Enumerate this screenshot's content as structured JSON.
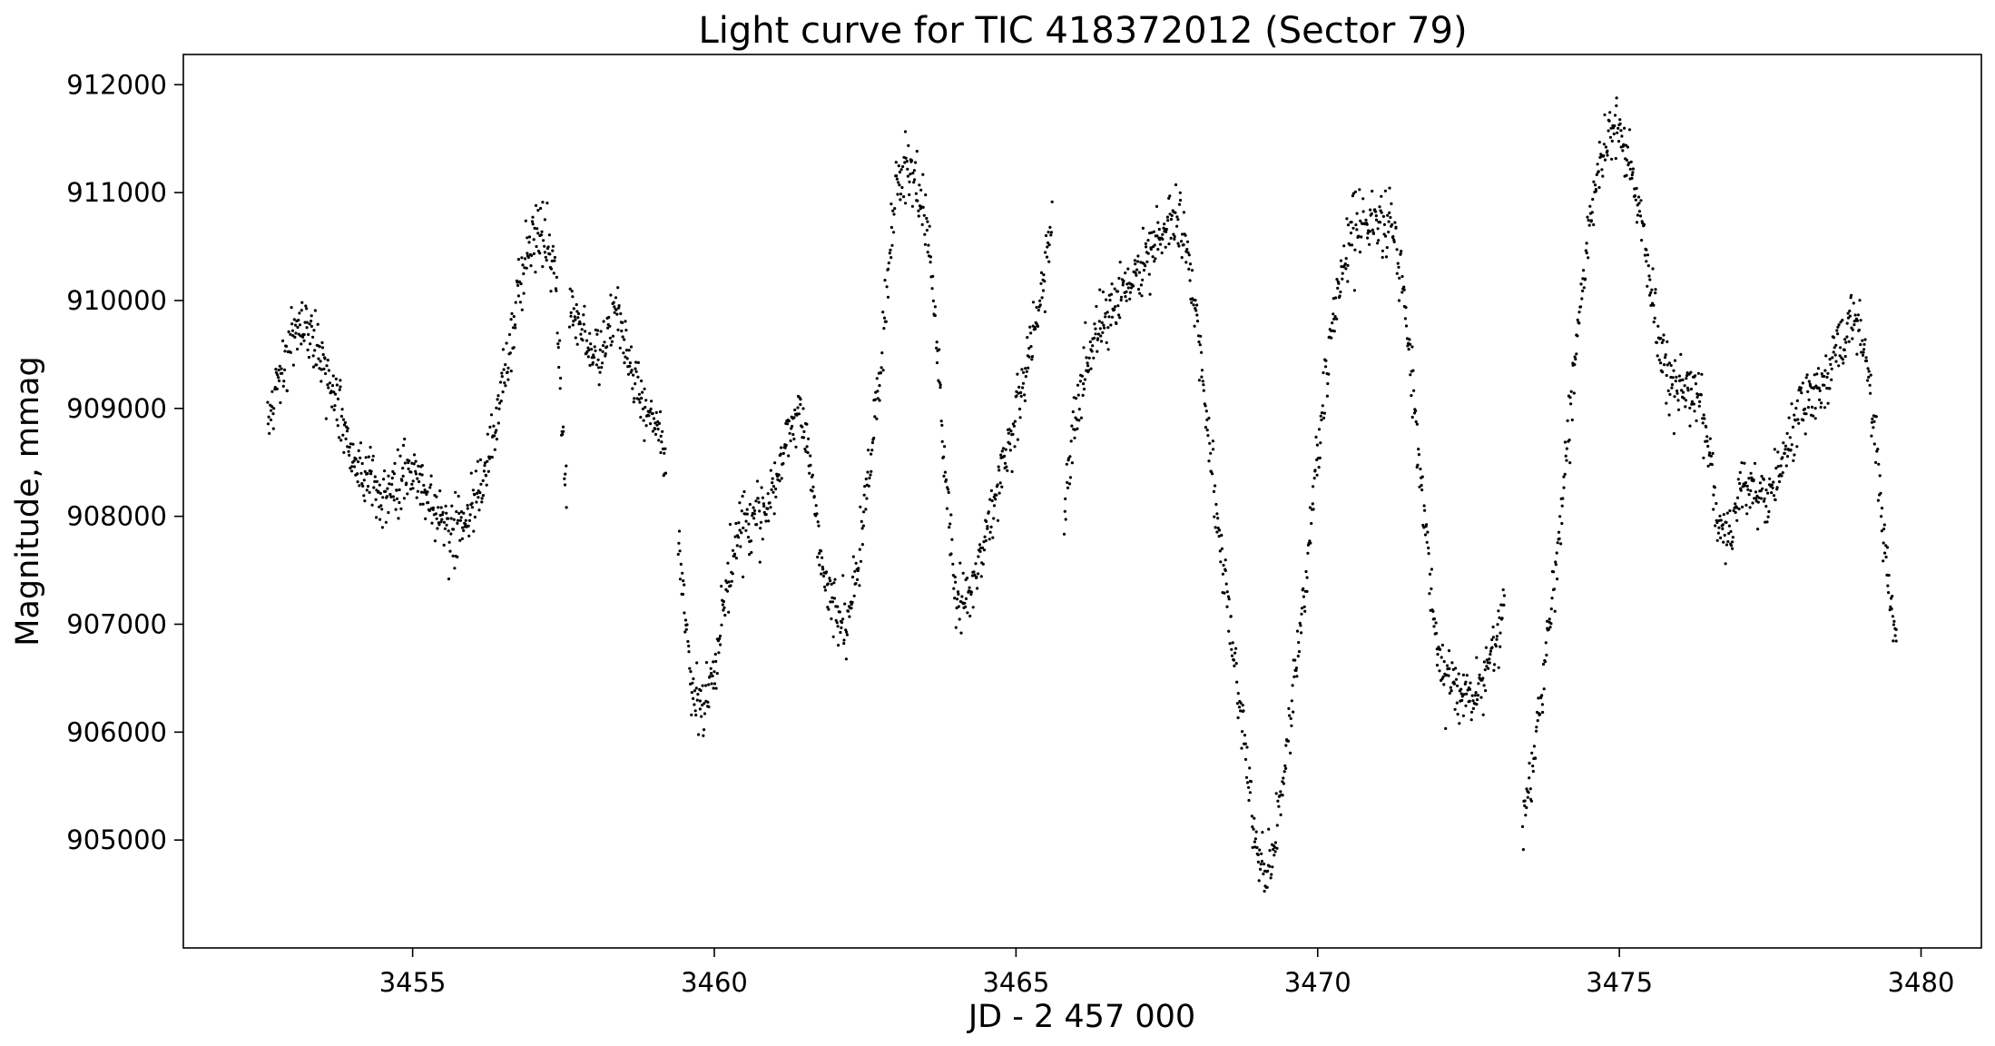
{
  "chart_data": {
    "type": "scatter",
    "title": "Light curve for TIC 418372012 (Sector 79)",
    "xlabel": "JD - 2 457 000",
    "ylabel": "Magnitude, mmag",
    "xlim": [
      3451.2,
      3481.0
    ],
    "ylim": [
      904000,
      912280
    ],
    "x_ticks": [
      3455,
      3460,
      3465,
      3470,
      3475,
      3480
    ],
    "x_tick_labels": [
      "3455",
      "3460",
      "3465",
      "3470",
      "3475",
      "3480"
    ],
    "y_ticks": [
      905000,
      906000,
      907000,
      908000,
      909000,
      910000,
      911000,
      912000
    ],
    "y_tick_labels": [
      "905000",
      "906000",
      "907000",
      "908000",
      "909000",
      "910000",
      "911000",
      "912000"
    ],
    "marker_color": "#000000",
    "grid": false,
    "series": [
      {
        "segments": [
          {
            "x": [
              3452.6,
              3452.8,
              3453.0,
              3453.2,
              3453.4,
              3453.6,
              3453.8,
              3454.0,
              3454.3,
              3454.6,
              3454.9,
              3455.1,
              3455.3,
              3455.5,
              3455.8,
              3456.0,
              3456.2,
              3456.4,
              3456.6,
              3456.8,
              3457.0,
              3457.2,
              3457.35,
              3457.45,
              3457.55
            ],
            "y": [
              908900,
              909300,
              909700,
              909800,
              909600,
              909300,
              909000,
              908500,
              908300,
              908200,
              908400,
              908400,
              908100,
              907900,
              907900,
              908100,
              908400,
              908900,
              909500,
              910300,
              910600,
              910500,
              910400,
              909200,
              908100
            ]
          },
          {
            "x": [
              3457.6,
              3457.8,
              3458.0,
              3458.2,
              3458.4,
              3458.6,
              3458.8,
              3459.0,
              3459.2
            ],
            "y": [
              909900,
              909700,
              909500,
              909600,
              910000,
              909400,
              909000,
              908900,
              908500
            ]
          },
          {
            "x": [
              3459.4,
              3459.6,
              3459.8,
              3460.0,
              3460.2,
              3460.4,
              3460.6,
              3460.8,
              3461.0,
              3461.2,
              3461.4,
              3461.6,
              3461.8,
              3462.0,
              3462.2,
              3462.4,
              3462.6,
              3462.8,
              3463.0,
              3463.2,
              3463.4,
              3463.6,
              3463.8,
              3464.0,
              3464.2,
              3464.4,
              3464.6,
              3464.8,
              3465.0,
              3465.2,
              3465.4,
              3465.6
            ],
            "y": [
              907700,
              906600,
              906200,
              906500,
              907300,
              907900,
              908000,
              908000,
              908300,
              908700,
              909000,
              908400,
              907500,
              907100,
              907000,
              907700,
              908600,
              909700,
              911000,
              911300,
              911000,
              910300,
              908600,
              907200,
              907300,
              907600,
              908100,
              908500,
              908900,
              909400,
              910000,
              910700
            ]
          },
          {
            "x": [
              3465.8,
              3466.0,
              3466.2,
              3466.4,
              3466.6,
              3466.8,
              3467.0,
              3467.2,
              3467.4,
              3467.6,
              3467.8,
              3468.0,
              3468.2,
              3468.4,
              3468.6,
              3468.8,
              3469.0,
              3469.2,
              3469.4,
              3469.6,
              3469.8,
              3470.0,
              3470.2,
              3470.4,
              3470.6,
              3470.8,
              3471.0,
              3471.2,
              3471.4,
              3471.6,
              3471.8,
              3472.0,
              3472.2,
              3472.4,
              3472.6,
              3472.8,
              3473.0,
              3473.1
            ],
            "y": [
              908000,
              909000,
              909500,
              909800,
              909900,
              910100,
              910200,
              910400,
              910600,
              910800,
              910600,
              909800,
              908600,
              907700,
              906800,
              905800,
              904900,
              904700,
              905400,
              906400,
              907400,
              908600,
              909600,
              910300,
              910700,
              910700,
              910700,
              910800,
              910200,
              909000,
              907800,
              906600,
              906400,
              906400,
              906300,
              906600,
              906900,
              907300
            ]
          },
          {
            "x": [
              3473.4,
              3473.6,
              3473.8,
              3474.0,
              3474.2,
              3474.4,
              3474.6,
              3474.8,
              3475.0,
              3475.2,
              3475.4,
              3475.6,
              3475.8,
              3476.0,
              3476.2,
              3476.4,
              3476.6,
              3476.8,
              3477.0,
              3477.2,
              3477.4,
              3477.6,
              3477.8,
              3478.0,
              3478.2,
              3478.4,
              3478.6,
              3478.8,
              3479.0,
              3479.2,
              3479.4,
              3479.6
            ],
            "y": [
              905100,
              905800,
              906800,
              907800,
              909000,
              910200,
              911100,
              911500,
              911600,
              911200,
              910600,
              909800,
              909300,
              909200,
              909200,
              909000,
              908000,
              907700,
              908300,
              908200,
              908200,
              908300,
              908700,
              909000,
              909100,
              909200,
              909500,
              909800,
              909700,
              909000,
              907700,
              906800
            ]
          }
        ]
      }
    ]
  }
}
